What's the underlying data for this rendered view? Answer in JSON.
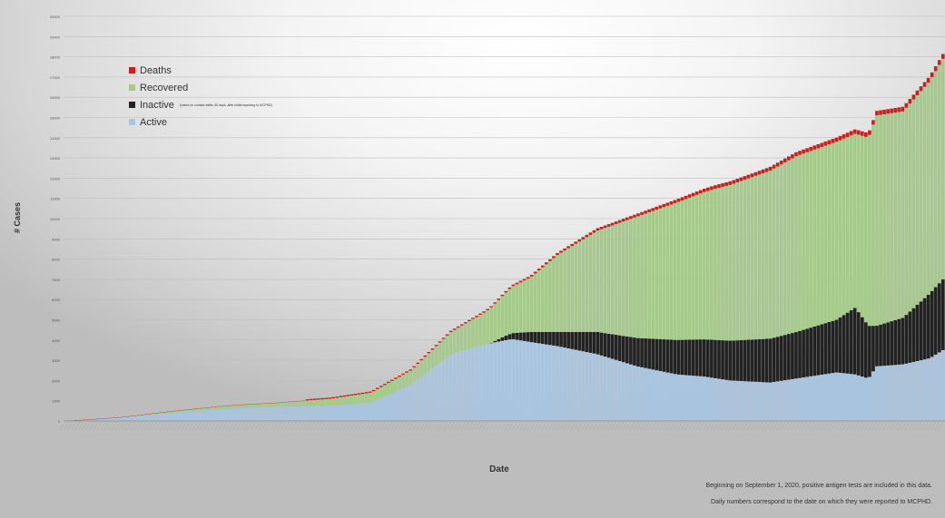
{
  "chart_data": {
    "type": "bar",
    "stacked": true,
    "title": "",
    "xlabel": "Date",
    "ylabel": "# Cases",
    "ylim": [
      0,
      20000
    ],
    "yticks": [
      0,
      1000,
      2000,
      3000,
      4000,
      5000,
      6000,
      7000,
      8000,
      9000,
      10000,
      11000,
      12000,
      13000,
      14000,
      15000,
      16000,
      17000,
      18000,
      19000,
      20000
    ],
    "grid": true,
    "legend_position": "top-left",
    "n_days": 240,
    "series": [
      {
        "name": "Active",
        "color": "#a9c4df",
        "keyframes": [
          [
            0,
            0
          ],
          [
            20,
            150
          ],
          [
            40,
            400
          ],
          [
            60,
            600
          ],
          [
            80,
            700
          ],
          [
            100,
            750
          ],
          [
            115,
            900
          ],
          [
            130,
            1800
          ],
          [
            145,
            3300
          ],
          [
            158,
            3800
          ],
          [
            168,
            4050
          ],
          [
            175,
            3900
          ],
          [
            185,
            3700
          ],
          [
            200,
            3300
          ],
          [
            215,
            2700
          ],
          [
            230,
            2300
          ],
          [
            240,
            2200
          ],
          [
            250,
            2000
          ],
          [
            265,
            1900
          ],
          [
            280,
            2200
          ],
          [
            290,
            2400
          ],
          [
            297,
            2300
          ],
          [
            302,
            2100
          ],
          [
            305,
            2700
          ],
          [
            315,
            2800
          ],
          [
            325,
            3100
          ],
          [
            330,
            3500
          ]
        ]
      },
      {
        "name": "Inactive",
        "color": "#222222",
        "keyframes": [
          [
            0,
            0
          ],
          [
            160,
            0
          ],
          [
            165,
            200
          ],
          [
            175,
            500
          ],
          [
            185,
            700
          ],
          [
            200,
            1100
          ],
          [
            215,
            1400
          ],
          [
            230,
            1700
          ],
          [
            245,
            1900
          ],
          [
            260,
            2100
          ],
          [
            275,
            2300
          ],
          [
            290,
            2600
          ],
          [
            297,
            3300
          ],
          [
            302,
            2600
          ],
          [
            305,
            2000
          ],
          [
            315,
            2300
          ],
          [
            325,
            3200
          ],
          [
            330,
            3500
          ]
        ]
      },
      {
        "name": "Recovered",
        "color": "#a6c98c",
        "keyframes": [
          [
            0,
            0
          ],
          [
            20,
            20
          ],
          [
            40,
            80
          ],
          [
            60,
            150
          ],
          [
            80,
            200
          ],
          [
            100,
            350
          ],
          [
            115,
            500
          ],
          [
            130,
            700
          ],
          [
            145,
            1100
          ],
          [
            158,
            1600
          ],
          [
            168,
            2300
          ],
          [
            175,
            2700
          ],
          [
            185,
            3800
          ],
          [
            200,
            5000
          ],
          [
            215,
            6000
          ],
          [
            230,
            6800
          ],
          [
            245,
            7500
          ],
          [
            260,
            8100
          ],
          [
            275,
            8700
          ],
          [
            290,
            8800
          ],
          [
            297,
            8600
          ],
          [
            302,
            9300
          ],
          [
            305,
            10400
          ],
          [
            315,
            10200
          ],
          [
            325,
            10500
          ],
          [
            330,
            10900
          ]
        ]
      },
      {
        "name": "Deaths",
        "color": "#cc1f1f",
        "keyframes": [
          [
            0,
            0
          ],
          [
            100,
            10
          ],
          [
            130,
            30
          ],
          [
            160,
            60
          ],
          [
            200,
            120
          ],
          [
            240,
            170
          ],
          [
            280,
            200
          ],
          [
            300,
            220
          ],
          [
            330,
            240
          ]
        ]
      }
    ]
  },
  "legend": {
    "items": [
      {
        "label": "Deaths",
        "color": "#cc1f1f"
      },
      {
        "label": "Recovered",
        "color": "#a6c98c"
      },
      {
        "label": "Inactive",
        "color": "#222222",
        "note": "(cases no contact within 30 days, after initial reporting to MCPHD)"
      },
      {
        "label": "Active",
        "color": "#a9c4df"
      }
    ]
  },
  "footnotes": {
    "line1": "Beginning on September 1, 2020, positive antigen tests are included in this data.",
    "line2": "Daily numbers correspond to the date on which they were reported to MCPHD."
  }
}
